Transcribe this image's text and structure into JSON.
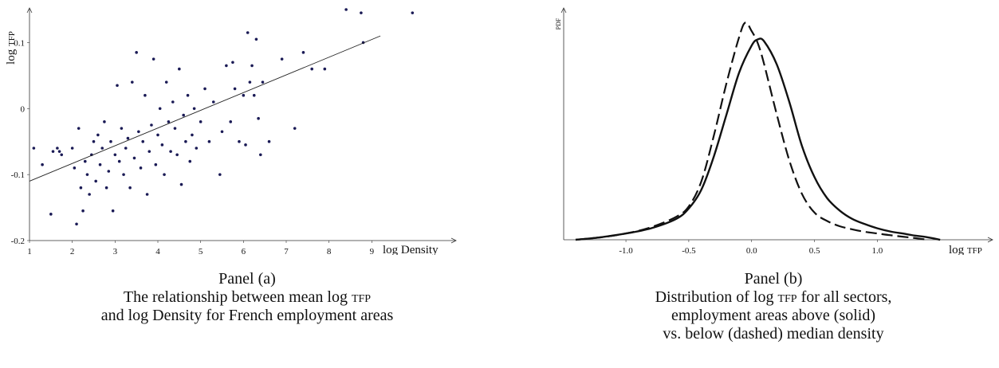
{
  "panel_a": {
    "panel_label": "Panel (a)",
    "caption_line1_pre": "The relationship between mean log ",
    "caption_line1_sc": "tfp",
    "caption_line2": "and log Density for French employment areas",
    "y_axis_label_pre": "log ",
    "y_axis_label_sc": "tfp",
    "x_axis_label": "log Density"
  },
  "panel_b": {
    "panel_label": "Panel (b)",
    "caption_line1_pre": "Distribution of log ",
    "caption_line1_sc": "tfp",
    "caption_line1_post": " for all sectors,",
    "caption_line2": "employment areas above (solid)",
    "caption_line3": "vs. below (dashed) median density",
    "y_axis_label": "pdf",
    "x_axis_label_pre": "log ",
    "x_axis_label_sc": "tfp"
  },
  "chart_data": [
    {
      "type": "scatter",
      "x_ticks": [
        "1",
        "2",
        "3",
        "4",
        "5",
        "6",
        "7",
        "8",
        "9"
      ],
      "y_ticks": [
        "-0.2",
        "-0.1",
        "0",
        "0.1"
      ],
      "xlim": [
        1,
        10
      ],
      "ylim": [
        -0.2,
        0.15
      ],
      "dot_color": "#1a1a55",
      "fit_line": {
        "x": [
          1,
          9.2
        ],
        "y": [
          -0.11,
          0.11
        ]
      },
      "points": [
        [
          1.1,
          -0.06
        ],
        [
          1.3,
          -0.085
        ],
        [
          1.5,
          -0.16
        ],
        [
          1.55,
          -0.065
        ],
        [
          1.65,
          -0.06
        ],
        [
          1.7,
          -0.065
        ],
        [
          1.75,
          -0.07
        ],
        [
          2.0,
          -0.06
        ],
        [
          2.05,
          -0.09
        ],
        [
          2.1,
          -0.175
        ],
        [
          2.15,
          -0.03
        ],
        [
          2.2,
          -0.12
        ],
        [
          2.25,
          -0.155
        ],
        [
          2.3,
          -0.08
        ],
        [
          2.35,
          -0.1
        ],
        [
          2.4,
          -0.13
        ],
        [
          2.45,
          -0.07
        ],
        [
          2.5,
          -0.05
        ],
        [
          2.55,
          -0.11
        ],
        [
          2.6,
          -0.04
        ],
        [
          2.65,
          -0.085
        ],
        [
          2.7,
          -0.06
        ],
        [
          2.75,
          -0.02
        ],
        [
          2.8,
          -0.12
        ],
        [
          2.85,
          -0.095
        ],
        [
          2.9,
          -0.05
        ],
        [
          2.95,
          -0.155
        ],
        [
          3.0,
          -0.07
        ],
        [
          3.05,
          0.035
        ],
        [
          3.1,
          -0.08
        ],
        [
          3.15,
          -0.03
        ],
        [
          3.2,
          -0.1
        ],
        [
          3.25,
          -0.06
        ],
        [
          3.3,
          -0.045
        ],
        [
          3.35,
          -0.12
        ],
        [
          3.4,
          0.04
        ],
        [
          3.45,
          -0.075
        ],
        [
          3.5,
          0.085
        ],
        [
          3.55,
          -0.035
        ],
        [
          3.6,
          -0.09
        ],
        [
          3.65,
          -0.05
        ],
        [
          3.7,
          0.02
        ],
        [
          3.75,
          -0.13
        ],
        [
          3.8,
          -0.065
        ],
        [
          3.85,
          -0.025
        ],
        [
          3.9,
          0.075
        ],
        [
          3.95,
          -0.085
        ],
        [
          4.0,
          -0.04
        ],
        [
          4.05,
          0.0
        ],
        [
          4.1,
          -0.055
        ],
        [
          4.15,
          -0.1
        ],
        [
          4.2,
          0.04
        ],
        [
          4.25,
          -0.02
        ],
        [
          4.3,
          -0.065
        ],
        [
          4.35,
          0.01
        ],
        [
          4.4,
          -0.03
        ],
        [
          4.45,
          -0.07
        ],
        [
          4.5,
          0.06
        ],
        [
          4.55,
          -0.115
        ],
        [
          4.6,
          -0.01
        ],
        [
          4.65,
          -0.05
        ],
        [
          4.7,
          0.02
        ],
        [
          4.75,
          -0.08
        ],
        [
          4.8,
          -0.04
        ],
        [
          4.85,
          0.0
        ],
        [
          4.9,
          -0.06
        ],
        [
          5.0,
          -0.02
        ],
        [
          5.1,
          0.03
        ],
        [
          5.2,
          -0.05
        ],
        [
          5.3,
          0.01
        ],
        [
          5.45,
          -0.1
        ],
        [
          5.5,
          -0.035
        ],
        [
          5.6,
          0.065
        ],
        [
          5.7,
          -0.02
        ],
        [
          5.75,
          0.07
        ],
        [
          5.8,
          0.03
        ],
        [
          5.9,
          -0.05
        ],
        [
          6.0,
          0.02
        ],
        [
          6.05,
          -0.055
        ],
        [
          6.1,
          0.115
        ],
        [
          6.15,
          0.04
        ],
        [
          6.2,
          0.065
        ],
        [
          6.25,
          0.02
        ],
        [
          6.3,
          0.105
        ],
        [
          6.35,
          -0.015
        ],
        [
          6.4,
          -0.07
        ],
        [
          6.45,
          0.04
        ],
        [
          6.6,
          -0.05
        ],
        [
          6.9,
          0.075
        ],
        [
          7.2,
          -0.03
        ],
        [
          7.4,
          0.085
        ],
        [
          7.6,
          0.06
        ],
        [
          7.9,
          0.06
        ],
        [
          8.4,
          0.15
        ],
        [
          8.75,
          0.145
        ],
        [
          8.8,
          0.1
        ],
        [
          9.95,
          0.145
        ]
      ]
    },
    {
      "type": "line",
      "x_ticks": [
        "-1.0",
        "-0.5",
        "0.0",
        "0.5",
        "1.0"
      ],
      "xlim": [
        -1.4,
        1.6
      ],
      "ylim": [
        0,
        1
      ],
      "series": [
        {
          "style": "solid",
          "x": [
            -1.4,
            -1.2,
            -1.0,
            -0.8,
            -0.6,
            -0.5,
            -0.4,
            -0.3,
            -0.2,
            -0.1,
            0.0,
            0.05,
            0.1,
            0.2,
            0.3,
            0.4,
            0.5,
            0.6,
            0.7,
            0.8,
            0.9,
            1.0,
            1.1,
            1.2,
            1.3,
            1.4,
            1.5
          ],
          "y": [
            0.0,
            0.012,
            0.03,
            0.055,
            0.1,
            0.15,
            0.24,
            0.4,
            0.6,
            0.8,
            0.93,
            0.96,
            0.95,
            0.84,
            0.66,
            0.45,
            0.3,
            0.2,
            0.14,
            0.1,
            0.075,
            0.055,
            0.04,
            0.03,
            0.02,
            0.012,
            0.0
          ]
        },
        {
          "style": "dashed",
          "x": [
            -1.4,
            -1.2,
            -1.0,
            -0.8,
            -0.6,
            -0.5,
            -0.4,
            -0.3,
            -0.2,
            -0.1,
            -0.05,
            0.0,
            0.05,
            0.1,
            0.2,
            0.3,
            0.4,
            0.5,
            0.6,
            0.7,
            0.8,
            0.9,
            1.0,
            1.1,
            1.2,
            1.3,
            1.4
          ],
          "y": [
            0.0,
            0.012,
            0.03,
            0.06,
            0.11,
            0.16,
            0.28,
            0.5,
            0.75,
            0.97,
            1.04,
            1.0,
            0.94,
            0.84,
            0.6,
            0.38,
            0.22,
            0.13,
            0.09,
            0.065,
            0.05,
            0.038,
            0.03,
            0.022,
            0.015,
            0.008,
            0.0
          ]
        }
      ]
    }
  ]
}
